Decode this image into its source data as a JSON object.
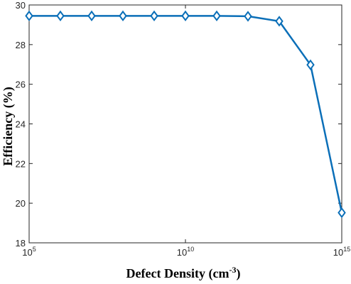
{
  "chart_data": {
    "type": "line",
    "x_scale": "log",
    "x": [
      100000,
      1000000,
      10000000,
      100000000,
      1000000000,
      10000000000,
      100000000000,
      1000000000000,
      10000000000000,
      100000000000000,
      1000000000000000
    ],
    "series": [
      {
        "values": [
          29.45,
          29.45,
          29.45,
          29.45,
          29.45,
          29.45,
          29.45,
          29.43,
          29.18,
          26.98,
          19.52
        ],
        "color": "#0b6fb8",
        "marker": "diamond"
      }
    ],
    "xlabel": "Defect Density (cm",
    "xlabel_superscript": "-3",
    "xlabel_suffix": ")",
    "ylabel": "Efficiency (%)",
    "xlim": [
      100000,
      1000000000000000
    ],
    "ylim": [
      18,
      30
    ],
    "x_ticks": [
      {
        "value": 100000,
        "base": "10",
        "exp": "5"
      },
      {
        "value": 10000000000,
        "base": "10",
        "exp": "10"
      },
      {
        "value": 1000000000000000,
        "base": "10",
        "exp": "15"
      }
    ],
    "y_ticks": [
      {
        "value": 18,
        "label": "18"
      },
      {
        "value": 20,
        "label": "20"
      },
      {
        "value": 22,
        "label": "22"
      },
      {
        "value": 24,
        "label": "24"
      },
      {
        "value": 26,
        "label": "26"
      },
      {
        "value": 28,
        "label": "28"
      },
      {
        "value": 30,
        "label": "30"
      }
    ],
    "grid": false
  }
}
